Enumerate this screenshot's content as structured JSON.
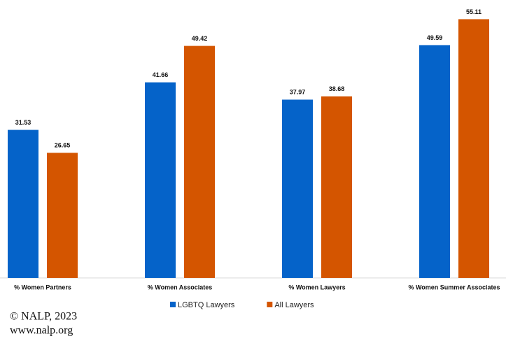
{
  "chart_data": {
    "type": "bar",
    "categories": [
      "% Women Partners",
      "% Women Associates",
      "% Women Lawyers",
      "% Women Summer Associates"
    ],
    "series": [
      {
        "name": "LGBTQ Lawyers",
        "color": "#0563c9",
        "values": [
          31.53,
          41.66,
          37.97,
          49.59
        ]
      },
      {
        "name": "All Lawyers",
        "color": "#d45500",
        "values": [
          26.65,
          49.42,
          38.68,
          55.11
        ]
      }
    ],
    "ylim": [
      0,
      59.2
    ],
    "legend": "bottom",
    "footer": [
      "© NALP, 2023",
      "www.nalp.org"
    ]
  }
}
